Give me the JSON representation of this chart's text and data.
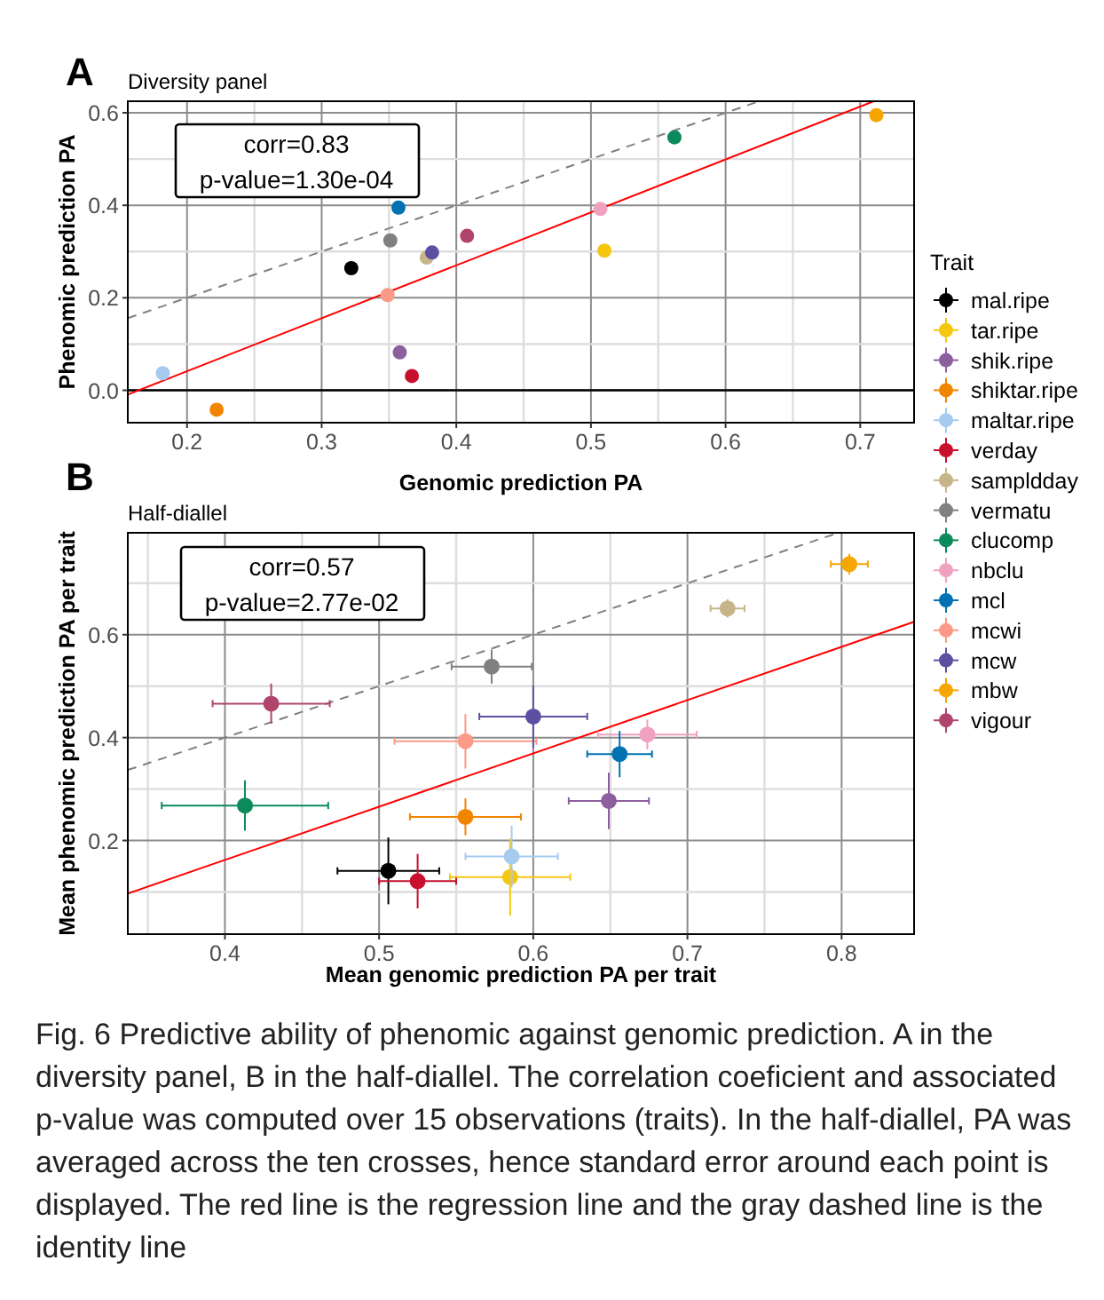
{
  "chart_data": [
    {
      "type": "scatter",
      "title": "A",
      "subtitle": "Diversity panel",
      "xlabel": "Genomic prediction PA",
      "ylabel": "Phenomic prediction PA",
      "xlim": [
        0.156,
        0.74
      ],
      "ylim": [
        -0.07,
        0.625
      ],
      "xticks": [
        0.2,
        {
          "value": 0.25,
          "label": null
        },
        0.3,
        {
          "value": 0.35,
          "label": null
        },
        0.4,
        {
          "value": 0.45,
          "label": null
        },
        0.5,
        {
          "value": 0.55,
          "label": null
        },
        0.6,
        {
          "value": 0.65,
          "label": null
        },
        0.7
      ],
      "yticks": [
        {
          "value": 0,
          "label": "0.0"
        },
        {
          "value": 0.1,
          "label": null
        },
        0.2,
        {
          "value": 0.3,
          "label": null
        },
        0.4,
        {
          "value": 0.5,
          "label": null
        },
        0.6
      ],
      "grid": true,
      "legend": "right",
      "legend_title": "Trait",
      "marker": "circle",
      "ref_lines": [
        {
          "axis": "y",
          "value": 0,
          "color": "#000000"
        }
      ],
      "annotations": [
        "corr=0.83",
        "p-value=1.30e-04"
      ],
      "series": [
        {
          "name": "mal.ripe",
          "color": "#000000",
          "x": [
            0.322
          ],
          "values": [
            0.264
          ]
        },
        {
          "name": "tar.ripe",
          "color": "#f5c710",
          "x": [
            0.51
          ],
          "values": [
            0.302
          ]
        },
        {
          "name": "shik.ripe",
          "color": "#8e5f9e",
          "x": [
            0.358
          ],
          "values": [
            0.082
          ]
        },
        {
          "name": "shiktar.ripe",
          "color": "#f28500",
          "x": [
            0.222
          ],
          "values": [
            -0.042
          ]
        },
        {
          "name": "maltar.ripe",
          "color": "#a6cbef",
          "x": [
            0.182
          ],
          "values": [
            0.037
          ]
        },
        {
          "name": "verday",
          "color": "#c8102e",
          "x": [
            0.367
          ],
          "values": [
            0.031
          ]
        },
        {
          "name": "sampldday",
          "color": "#c7b589",
          "x": [
            0.378
          ],
          "values": [
            0.287
          ]
        },
        {
          "name": "vermatu",
          "color": "#808080",
          "x": [
            0.351
          ],
          "values": [
            0.324
          ]
        },
        {
          "name": "clucomp",
          "color": "#0b8a5b",
          "x": [
            0.562
          ],
          "values": [
            0.547
          ]
        },
        {
          "name": "nbclu",
          "color": "#f0a1bf",
          "x": [
            0.507
          ],
          "values": [
            0.392
          ]
        },
        {
          "name": "mcl",
          "color": "#0072b2",
          "x": [
            0.357
          ],
          "values": [
            0.395
          ]
        },
        {
          "name": "mcwi",
          "color": "#fb9a86",
          "x": [
            0.349
          ],
          "values": [
            0.206
          ]
        },
        {
          "name": "mcw",
          "color": "#5e4fa2",
          "x": [
            0.382
          ],
          "values": [
            0.298
          ]
        },
        {
          "name": "mbw",
          "color": "#f6a600",
          "x": [
            0.712
          ],
          "values": [
            0.595
          ]
        },
        {
          "name": "vigour",
          "color": "#b0446c",
          "x": [
            0.408
          ],
          "values": [
            0.334
          ]
        },
        {
          "type": "line",
          "color": "#ff0000",
          "line_style": "solid",
          "marker": "none",
          "x": [
            0.156,
            0.71
          ],
          "values": [
            -0.009,
            0.625
          ]
        },
        {
          "type": "line",
          "color": "#808080",
          "line_style": "dashed",
          "marker": "none",
          "x": [
            0.156,
            0.625
          ],
          "values": [
            0.156,
            0.625
          ]
        }
      ]
    },
    {
      "type": "scatter",
      "title": "B",
      "subtitle": "Half-diallel",
      "xlabel": "Mean genomic prediction PA per trait",
      "ylabel": "Mean phenomic prediction PA per trait",
      "xlim": [
        0.337,
        0.847
      ],
      "ylim": [
        0.018,
        0.798
      ],
      "xticks": [
        {
          "value": 0.35,
          "label": null
        },
        0.4,
        {
          "value": 0.45,
          "label": null
        },
        0.5,
        {
          "value": 0.55,
          "label": null
        },
        0.6,
        {
          "value": 0.65,
          "label": null
        },
        0.7,
        {
          "value": 0.75,
          "label": null
        },
        0.8
      ],
      "yticks": [
        {
          "value": 0.1,
          "label": null
        },
        0.2,
        {
          "value": 0.3,
          "label": null
        },
        0.4,
        {
          "value": 0.5,
          "label": null
        },
        0.6,
        {
          "value": 0.7,
          "label": null
        }
      ],
      "grid": true,
      "legend": false,
      "marker": "circle",
      "annotations": [
        "corr=0.57",
        "p-value=2.77e-02",
        "Fig. 6  Predictive ability of phenomic against genomic prediction. A in the diversity panel, B in the half-diallel. The correlation coeficient and associated p-value was computed over 15 observations (traits). In the half-diallel, PA was averaged across the ten crosses, hence standard error around each point is displayed. The red line is the regression line and the gray dashed line is the identity line"
      ],
      "series": [
        {
          "color": "#000000",
          "x": [
            0.506
          ],
          "values": [
            0.141
          ],
          "xerrors": [
            0.033
          ],
          "errors": [
            0.065
          ]
        },
        {
          "color": "#f5c710",
          "x": [
            0.585
          ],
          "values": [
            0.129
          ],
          "xerrors": [
            0.039
          ],
          "errors": [
            0.075
          ]
        },
        {
          "color": "#8e5f9e",
          "x": [
            0.649
          ],
          "values": [
            0.277
          ],
          "xerrors": [
            0.026
          ],
          "errors": [
            0.055
          ]
        },
        {
          "color": "#f28500",
          "x": [
            0.556
          ],
          "values": [
            0.246
          ],
          "xerrors": [
            0.036
          ],
          "errors": [
            0.036
          ]
        },
        {
          "color": "#a6cbef",
          "x": [
            0.586
          ],
          "values": [
            0.169
          ],
          "xerrors": [
            0.03
          ],
          "errors": [
            0.06
          ]
        },
        {
          "color": "#c8102e",
          "x": [
            0.525
          ],
          "values": [
            0.121
          ],
          "xerrors": [
            0.025
          ],
          "errors": [
            0.053
          ]
        },
        {
          "color": "#c7b589",
          "x": [
            0.726
          ],
          "values": [
            0.651
          ],
          "xerrors": [
            0.011
          ],
          "errors": [
            0.018
          ]
        },
        {
          "color": "#808080",
          "x": [
            0.573
          ],
          "values": [
            0.538
          ],
          "xerrors": [
            0.026
          ],
          "errors": [
            0.033
          ]
        },
        {
          "color": "#0b8a5b",
          "x": [
            0.413
          ],
          "values": [
            0.268
          ],
          "xerrors": [
            0.054
          ],
          "errors": [
            0.049
          ]
        },
        {
          "color": "#f0a1bf",
          "x": [
            0.674
          ],
          "values": [
            0.406
          ],
          "xerrors": [
            0.032
          ],
          "errors": [
            0.029
          ]
        },
        {
          "color": "#0072b2",
          "x": [
            0.656
          ],
          "values": [
            0.368
          ],
          "xerrors": [
            0.021
          ],
          "errors": [
            0.045
          ]
        },
        {
          "color": "#fb9a86",
          "x": [
            0.556
          ],
          "values": [
            0.393
          ],
          "xerrors": [
            0.046
          ],
          "errors": [
            0.053
          ]
        },
        {
          "color": "#5e4fa2",
          "x": [
            0.6
          ],
          "values": [
            0.441
          ],
          "xerrors": [
            0.035
          ],
          "errors": [
            0.061
          ]
        },
        {
          "color": "#f6a600",
          "x": [
            0.805
          ],
          "values": [
            0.737
          ],
          "xerrors": [
            0.012
          ],
          "errors": [
            0.02
          ]
        },
        {
          "color": "#b0446c",
          "x": [
            0.43
          ],
          "values": [
            0.466
          ],
          "xerrors": [
            0.038
          ],
          "errors": [
            0.039
          ]
        },
        {
          "type": "line",
          "color": "#ff0000",
          "line_style": "solid",
          "marker": "none",
          "x": [
            0.337,
            0.847
          ],
          "values": [
            0.097,
            0.625
          ]
        },
        {
          "type": "line",
          "color": "#808080",
          "line_style": "dashed",
          "marker": "none",
          "x": [
            0.337,
            0.798
          ],
          "values": [
            0.337,
            0.798
          ]
        }
      ]
    }
  ]
}
